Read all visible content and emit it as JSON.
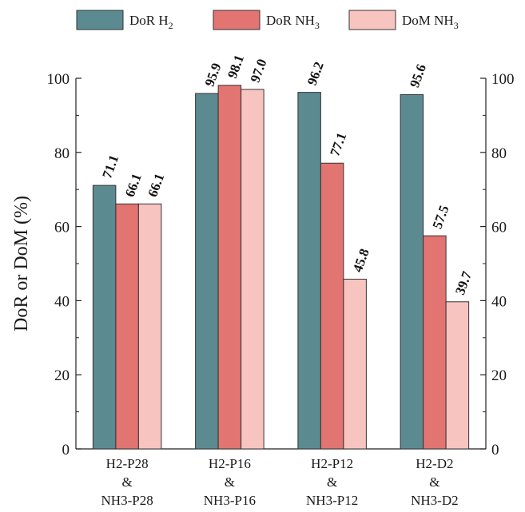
{
  "chart_data": {
    "type": "bar",
    "categories": [
      [
        "H2-P28",
        "&",
        "NH3-P28"
      ],
      [
        "H2-P16",
        "&",
        "NH3-P16"
      ],
      [
        "H2-P12",
        "&",
        "NH3-P12"
      ],
      [
        "H2-D2",
        "&",
        "NH3-D2"
      ]
    ],
    "series": [
      {
        "name": "DoR H",
        "sub": "2",
        "color": "#5b8b91",
        "values": [
          71.1,
          95.9,
          96.2,
          95.6
        ]
      },
      {
        "name": "DoR NH",
        "sub": "3",
        "color": "#e27471",
        "values": [
          66.1,
          98.1,
          77.1,
          57.5
        ]
      },
      {
        "name": "DoM NH",
        "sub": "3",
        "color": "#f8c4c0",
        "values": [
          66.1,
          97.0,
          45.8,
          39.7
        ]
      }
    ],
    "ylabel": "DoR or DoM (%)",
    "ylim": [
      0,
      100
    ],
    "yticks": [
      0,
      20,
      40,
      60,
      80,
      100
    ],
    "secondary_y_axis": true,
    "grid": false,
    "legend_position": "top"
  }
}
